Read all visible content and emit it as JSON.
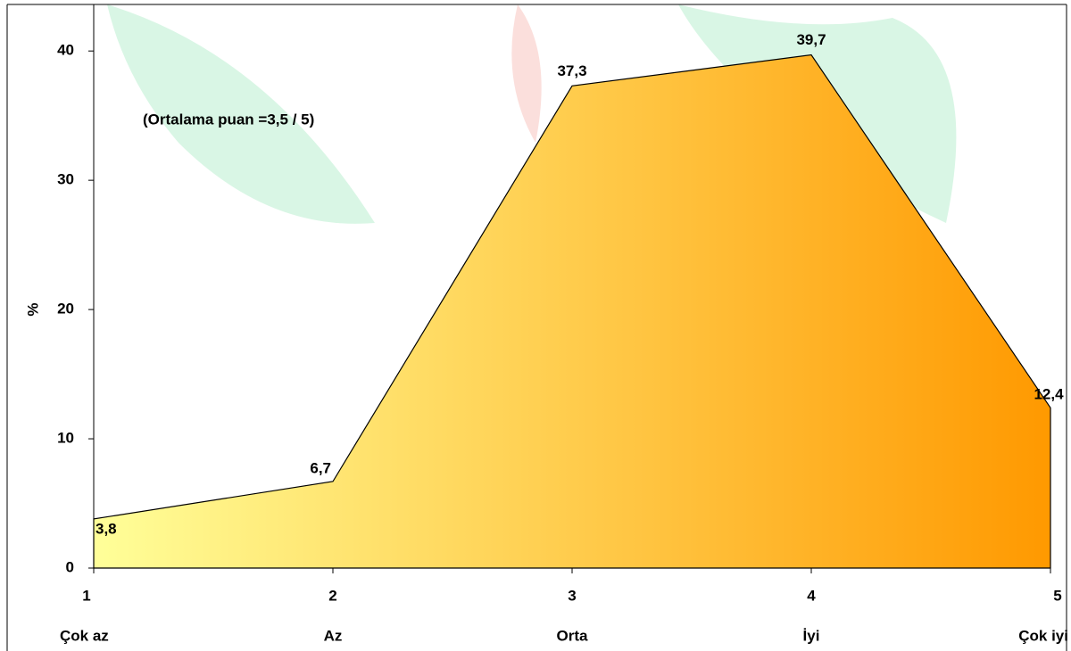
{
  "chart_data": {
    "type": "area",
    "y_label": "%",
    "annotation": "(Ortalama puan =3,5 / 5)",
    "x": [
      1,
      2,
      3,
      4,
      5
    ],
    "categories": [
      "Çok az",
      "Az",
      "Orta",
      "İyi",
      "Çok iyi"
    ],
    "values": [
      3.8,
      6.7,
      37.3,
      39.7,
      12.4
    ],
    "value_labels": [
      "3,8",
      "6,7",
      "37,3",
      "39,7",
      "12,4"
    ],
    "color_start": "#ffff99",
    "color_end": "#ff9900",
    "xlim": [
      1,
      5
    ],
    "xticks": [
      1,
      2,
      3,
      4,
      5
    ],
    "ylim": [
      0,
      43.6
    ],
    "yticks": [
      0,
      10,
      20,
      30,
      40
    ]
  }
}
